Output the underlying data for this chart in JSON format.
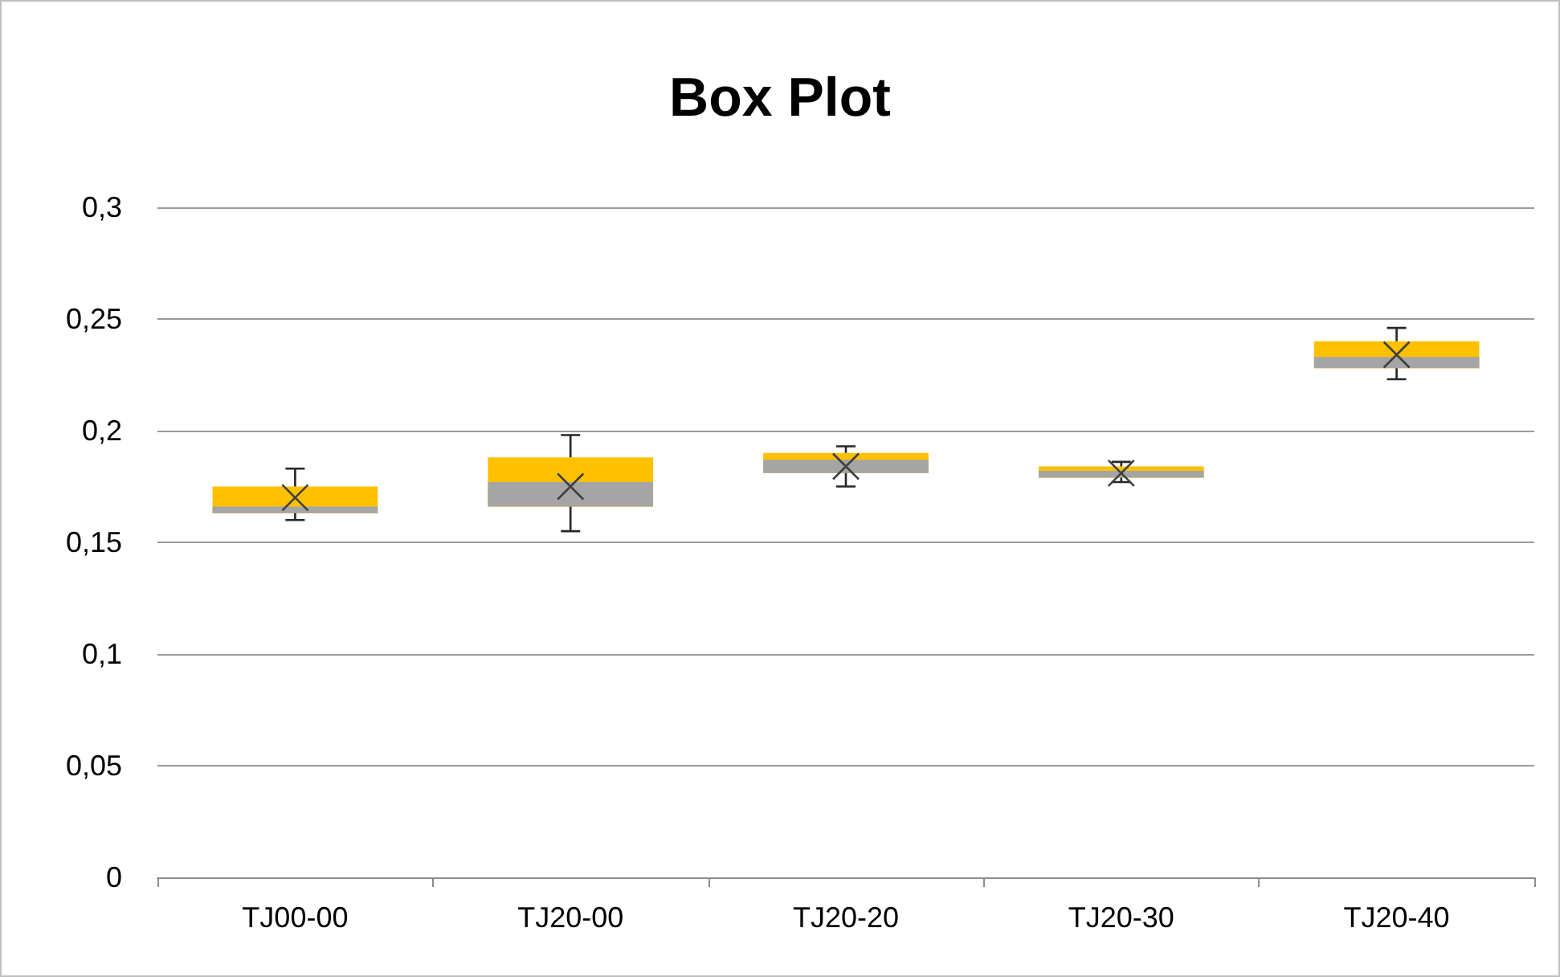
{
  "chart_data": {
    "type": "box",
    "title": "Box Plot",
    "categories": [
      "TJ00-00",
      "TJ20-00",
      "TJ20-20",
      "TJ20-30",
      "TJ20-40"
    ],
    "boxes": [
      {
        "low": 0.16,
        "q1": 0.163,
        "median": 0.166,
        "q3": 0.175,
        "high": 0.183,
        "mean": 0.17
      },
      {
        "low": 0.155,
        "q1": 0.166,
        "median": 0.177,
        "q3": 0.188,
        "high": 0.198,
        "mean": 0.175
      },
      {
        "low": 0.175,
        "q1": 0.181,
        "median": 0.187,
        "q3": 0.19,
        "high": 0.193,
        "mean": 0.184
      },
      {
        "low": 0.177,
        "q1": 0.179,
        "median": 0.182,
        "q3": 0.184,
        "high": 0.186,
        "mean": 0.181
      },
      {
        "low": 0.223,
        "q1": 0.228,
        "median": 0.233,
        "q3": 0.24,
        "high": 0.246,
        "mean": 0.234
      }
    ],
    "colors": [
      "#ffc000",
      "#ffc000",
      "#ffc000",
      "#ffc000",
      "#ffc000"
    ],
    "marker": "cross",
    "ylim": [
      0,
      0.3
    ],
    "yticks": [
      {
        "value": 0,
        "label": "0"
      },
      {
        "value": 0.05,
        "label": "0,05"
      },
      {
        "value": 0.1,
        "label": "0,1"
      },
      {
        "value": 0.15,
        "label": "0,15"
      },
      {
        "value": 0.2,
        "label": "0,2"
      },
      {
        "value": 0.25,
        "label": "0,25"
      },
      {
        "value": 0.3,
        "label": "0,3"
      }
    ],
    "grid": "y"
  }
}
